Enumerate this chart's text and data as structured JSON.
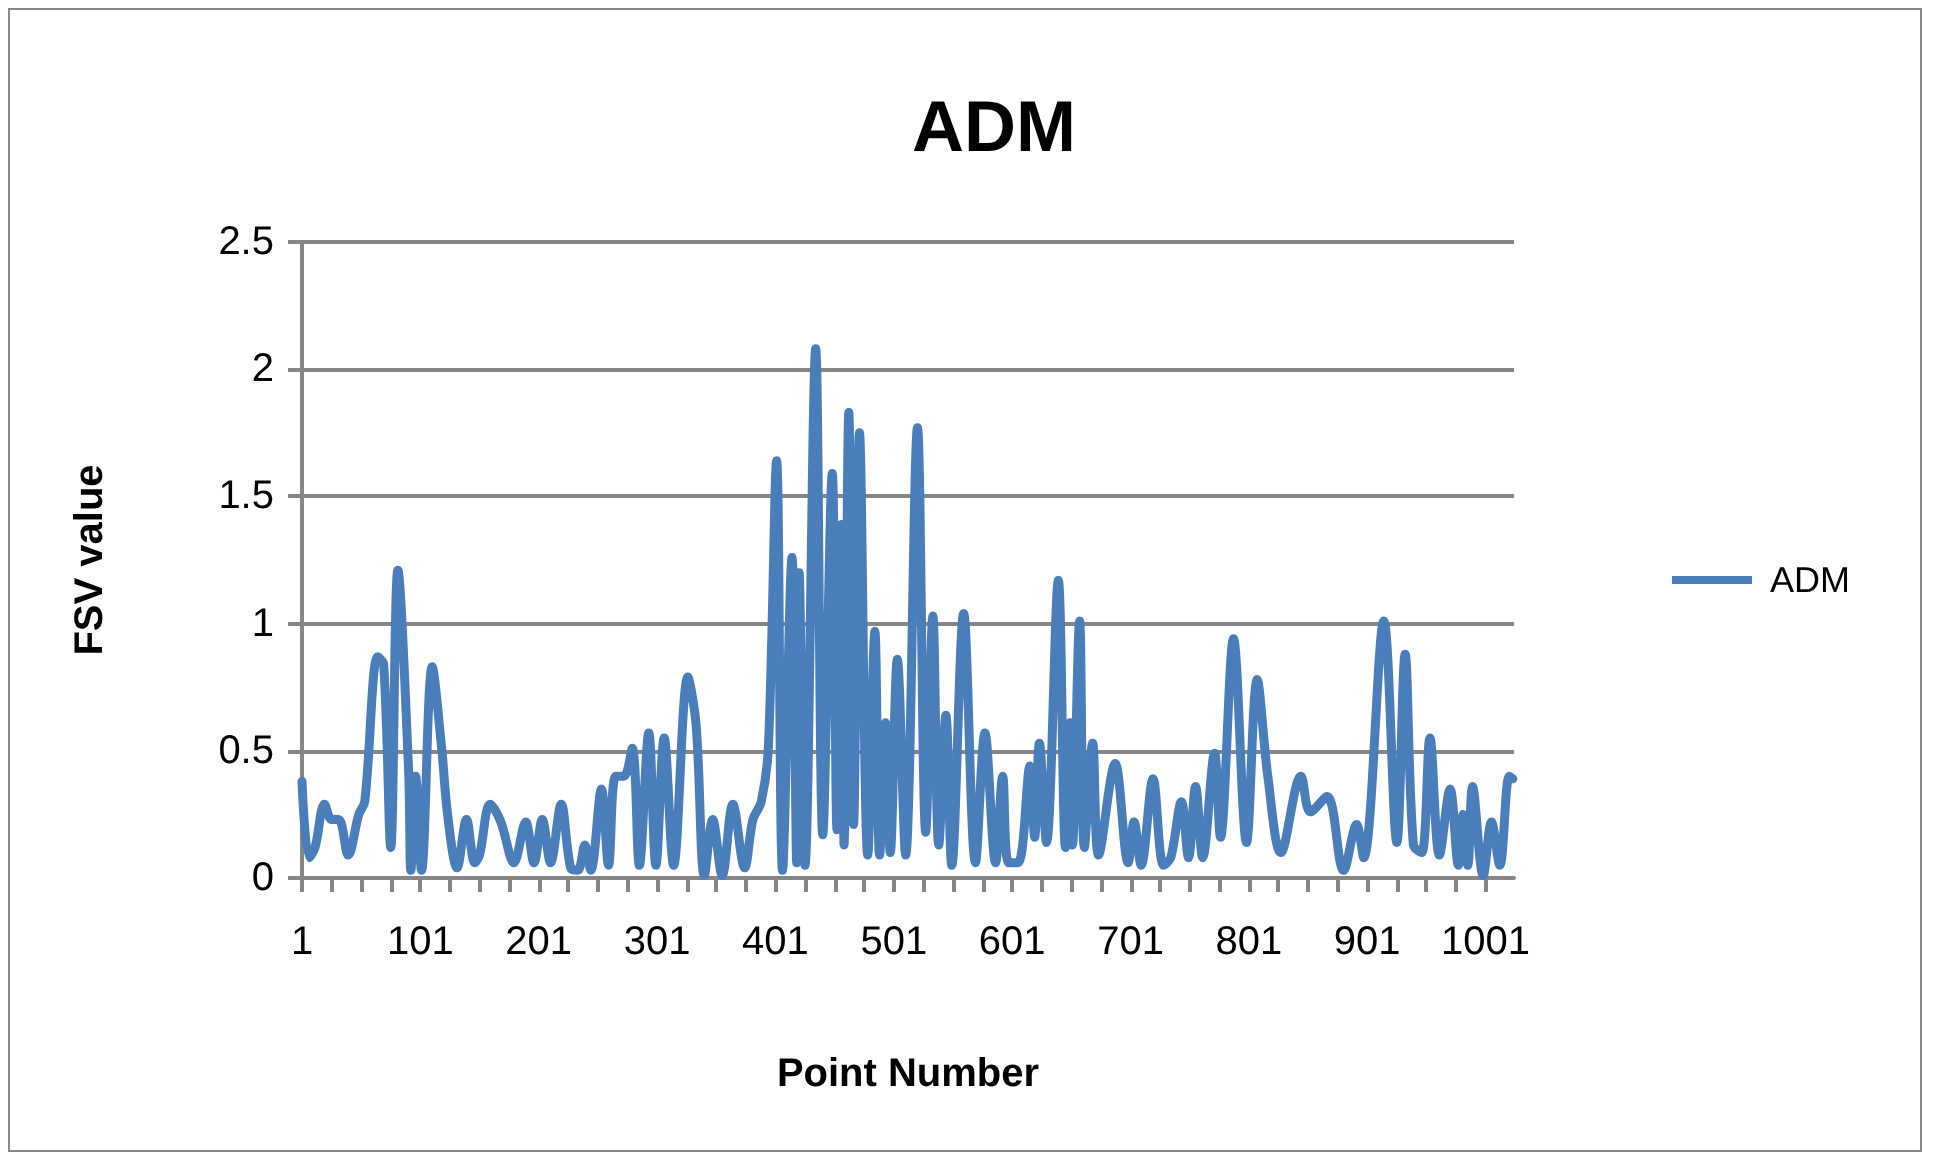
{
  "chart_data": {
    "type": "line",
    "title": "ADM",
    "xlabel": "Point Number",
    "ylabel": "FSV value",
    "xlim": [
      1,
      1025
    ],
    "xticks": [
      1,
      {
        "value": 26,
        "label": null
      },
      {
        "value": 51,
        "label": null
      },
      {
        "value": 76,
        "label": null
      },
      101,
      {
        "value": 126,
        "label": null
      },
      {
        "value": 151,
        "label": null
      },
      {
        "value": 176,
        "label": null
      },
      201,
      {
        "value": 226,
        "label": null
      },
      {
        "value": 251,
        "label": null
      },
      {
        "value": 276,
        "label": null
      },
      301,
      {
        "value": 326,
        "label": null
      },
      {
        "value": 351,
        "label": null
      },
      {
        "value": 376,
        "label": null
      },
      401,
      {
        "value": 426,
        "label": null
      },
      {
        "value": 451,
        "label": null
      },
      {
        "value": 476,
        "label": null
      },
      501,
      {
        "value": 526,
        "label": null
      },
      {
        "value": 551,
        "label": null
      },
      {
        "value": 576,
        "label": null
      },
      601,
      {
        "value": 626,
        "label": null
      },
      {
        "value": 651,
        "label": null
      },
      {
        "value": 676,
        "label": null
      },
      701,
      {
        "value": 726,
        "label": null
      },
      {
        "value": 751,
        "label": null
      },
      {
        "value": 776,
        "label": null
      },
      801,
      {
        "value": 826,
        "label": null
      },
      {
        "value": 851,
        "label": null
      },
      {
        "value": 876,
        "label": null
      },
      901,
      {
        "value": 926,
        "label": null
      },
      {
        "value": 951,
        "label": null
      },
      {
        "value": 976,
        "label": null
      },
      1001
    ],
    "ylim": [
      0,
      2.5
    ],
    "yticks": [
      0,
      0.5,
      1,
      1.5,
      2,
      2.5
    ],
    "grid": "y",
    "legend": "right",
    "marker": "none",
    "line_style": "solid",
    "series": [
      {
        "name": "ADM",
        "color": "#4a7ebb",
        "x": [
          1,
          7,
          12,
          20,
          26,
          32,
          40,
          49,
          54,
          65,
          70,
          76,
          82,
          91,
          93,
          97,
          102,
          111,
          119,
          124,
          132,
          140,
          147,
          151,
          160,
          169,
          180,
          190,
          197,
          204,
          211,
          220,
          228,
          234,
          240,
          245,
          254,
          260,
          266,
          273,
          280,
          286,
          294,
          300,
          307,
          315,
          327,
          334,
          341,
          348,
          356,
          365,
          375,
          382,
          389,
          395,
          402,
          407,
          415,
          419,
          421,
          426,
          435,
          441,
          449,
          453,
          457,
          459,
          463,
          467,
          472,
          479,
          485,
          489,
          494,
          498,
          504,
          511,
          521,
          528,
          534,
          539,
          545,
          550,
          560,
          570,
          578,
          587,
          593,
          598,
          606,
          616,
          620,
          624,
          630,
          640,
          646,
          650,
          652,
          658,
          662,
          669,
          674,
          688,
          699,
          704,
          710,
          720,
          729,
          735,
          744,
          750,
          756,
          762,
          772,
          777,
          788,
          799,
          808,
          817,
          828,
          845,
          853,
          867,
          881,
          892,
          898,
          915,
          926,
          933,
          940,
          947,
          954,
          962,
          971,
          978,
          982,
          986,
          990,
          999,
          1006,
          1013,
          1021,
          1024
        ],
        "values": [
          0.38,
          0.08,
          0.12,
          0.29,
          0.23,
          0.23,
          0.09,
          0.25,
          0.3,
          0.87,
          0.84,
          0.12,
          1.21,
          0.43,
          0.03,
          0.4,
          0.03,
          0.83,
          0.51,
          0.25,
          0.04,
          0.23,
          0.06,
          0.09,
          0.29,
          0.22,
          0.06,
          0.22,
          0.06,
          0.23,
          0.06,
          0.29,
          0.04,
          0.03,
          0.13,
          0.03,
          0.35,
          0.05,
          0.4,
          0.4,
          0.51,
          0.05,
          0.57,
          0.05,
          0.55,
          0.05,
          0.79,
          0.6,
          0.01,
          0.23,
          0.01,
          0.29,
          0.04,
          0.23,
          0.3,
          0.51,
          1.64,
          0.03,
          1.26,
          0.06,
          1.2,
          0.05,
          2.08,
          0.17,
          1.59,
          0.19,
          1.39,
          0.13,
          1.83,
          0.21,
          1.75,
          0.09,
          0.97,
          0.09,
          0.61,
          0.1,
          0.86,
          0.09,
          1.77,
          0.18,
          1.03,
          0.13,
          0.64,
          0.05,
          1.04,
          0.06,
          0.57,
          0.06,
          0.4,
          0.06,
          0.06,
          0.44,
          0.16,
          0.53,
          0.14,
          1.17,
          0.12,
          0.61,
          0.13,
          1.01,
          0.12,
          0.53,
          0.09,
          0.45,
          0.06,
          0.22,
          0.05,
          0.39,
          0.05,
          0.08,
          0.3,
          0.08,
          0.36,
          0.08,
          0.49,
          0.16,
          0.94,
          0.14,
          0.78,
          0.4,
          0.1,
          0.4,
          0.26,
          0.32,
          0.03,
          0.21,
          0.08,
          1.01,
          0.14,
          0.88,
          0.13,
          0.1,
          0.55,
          0.09,
          0.35,
          0.05,
          0.25,
          0.05,
          0.36,
          0.01,
          0.22,
          0.05,
          0.4,
          0.39
        ]
      }
    ]
  }
}
